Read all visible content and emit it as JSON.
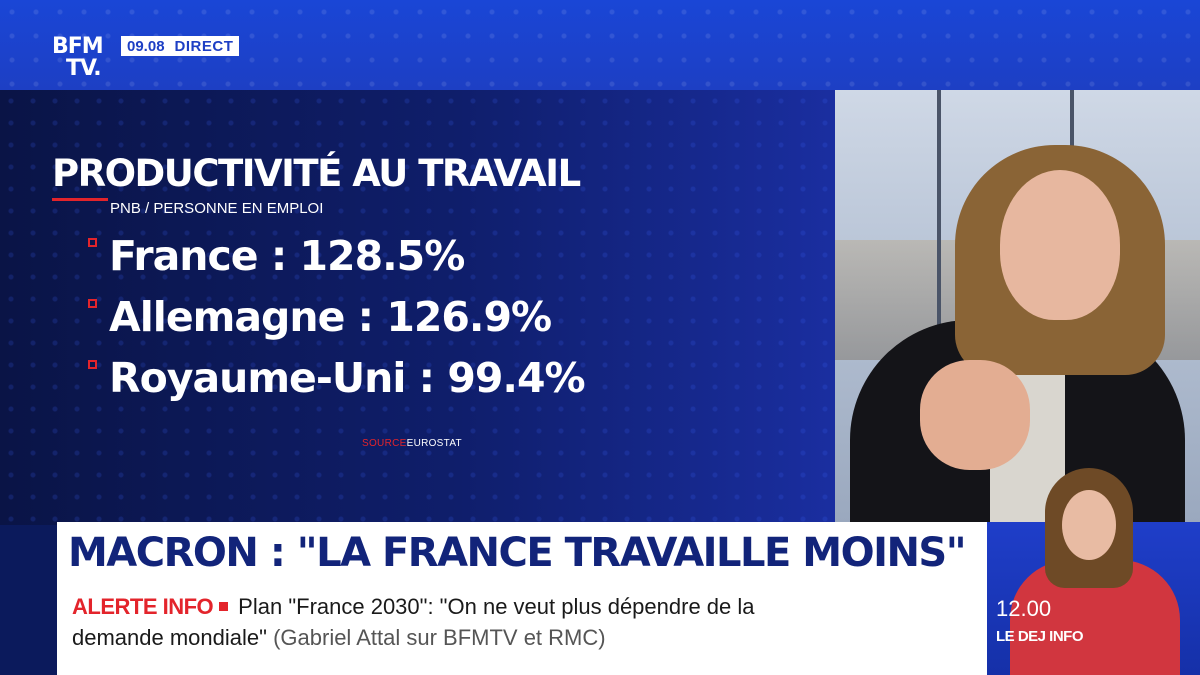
{
  "channel": {
    "logo_line1": "BFM",
    "logo_line2": "TV.",
    "time": "09.08",
    "live_label": "DIRECT"
  },
  "graphic": {
    "title": "PRODUCTIVITÉ AU TRAVAIL",
    "subtitle": "PNB / PERSONNE EN EMPLOI",
    "stats": [
      {
        "label": "France : 128.5%"
      },
      {
        "label": "Allemagne : 126.9%"
      },
      {
        "label": "Royaume-Uni : 99.4%"
      }
    ],
    "source_label": "SOURCE",
    "source_value": "EUROSTAT"
  },
  "headline": "MACRON : \"LA FRANCE TRAVAILLE MOINS\"",
  "ticker": {
    "label": "ALERTE INFO",
    "line1": "Plan \"France 2030\": \"On ne veut plus dépendre de la",
    "line2": "demande mondiale\"",
    "attribution": "(Gabriel Attal sur BFMTV et RMC)"
  },
  "next_program": {
    "time": "12.00",
    "show": "LE DEJ INFO"
  },
  "colors": {
    "accent_red": "#e3242b",
    "brand_blue": "#1d3fc4",
    "headline_blue": "#12247a"
  }
}
